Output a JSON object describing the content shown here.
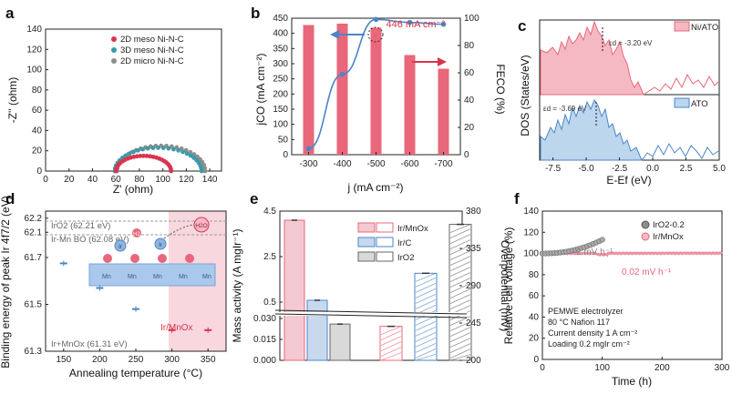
{
  "colors": {
    "red": "#d9344e",
    "teal": "#3d9aa8",
    "gray": "#8d8d8d",
    "bar_red": "#e9677a",
    "line_blue": "#4a86c8",
    "pink_light": "#f5c9d1",
    "blue_light": "#c8d9ee",
    "gray_light": "#d9d9d9",
    "pink_shade": "#f9d7de"
  },
  "panels": {
    "a": {
      "letter": "a",
      "chart_data": {
        "type": "scatter",
        "xlabel": "Z' (ohm)",
        "ylabel": "-Z'' (ohm)",
        "xlim": [
          0,
          150
        ],
        "ylim": [
          0,
          140
        ],
        "xticks": [
          "0",
          "20",
          "40",
          "60",
          "80",
          "100",
          "120",
          "140"
        ],
        "yticks": [
          "0",
          "20",
          "40",
          "60",
          "80",
          "100",
          "120",
          "140"
        ],
        "series": [
          {
            "name": "2D meso Ni-N-C",
            "color": "#d9344e",
            "x_start": 60,
            "x_end": 107,
            "peak": 15
          },
          {
            "name": "3D meso Ni-N-C",
            "color": "#3d9aa8",
            "x_start": 59,
            "x_end": 133,
            "peak": 23
          },
          {
            "name": "2D micro Ni-N-C",
            "color": "#8d8d8d",
            "x_start": 61,
            "x_end": 136,
            "peak": 25
          }
        ]
      }
    },
    "b": {
      "letter": "b",
      "annotation": "446 mA cm⁻²",
      "chart_data": {
        "type": "bar",
        "categories": [
          "-300",
          "-400",
          "-500",
          "-600",
          "-700"
        ],
        "xlabel": "j (mA cm⁻²)",
        "ylabel_left": "jCO (mA cm⁻²)",
        "ylabel_right": "FECO (%)",
        "ylim_left": [
          0,
          450
        ],
        "ylim_right": [
          0,
          100
        ],
        "yticks_left": [
          "0",
          "50",
          "100",
          "150",
          "200",
          "250",
          "300",
          "350",
          "400",
          "450"
        ],
        "yticks_right": [
          "0",
          "20",
          "40",
          "60",
          "80",
          "100"
        ],
        "bar_series": {
          "name": "FE CO (%)",
          "values": [
            95,
            96,
            93,
            73,
            63
          ]
        },
        "line_series": {
          "name": "jCO",
          "values": [
            20,
            265,
            446,
            436,
            430
          ]
        }
      }
    },
    "c": {
      "letter": "c",
      "xlabel": "E-Ef (eV)",
      "ylabel": "DOS (States/eV)",
      "xticks": [
        "-7.5",
        "-5.0",
        "-2.5",
        "0.0",
        "2.5",
        "5.0"
      ],
      "top": {
        "legend": "Ni/ATO",
        "annotation": "εd = -3.20 eV"
      },
      "bottom": {
        "legend": "ATO",
        "annotation": "εd = -3.69 eV"
      }
    },
    "d": {
      "letter": "d",
      "chart_data": {
        "type": "scatter",
        "xlabel": "Annealing temperature (°C)",
        "ylabel": "Binding energy of peak Ir 4f7/2 (eV)",
        "xlim": [
          125,
          375
        ],
        "ylim": [
          61.3,
          62.25
        ],
        "xticks": [
          "150",
          "200",
          "250",
          "300",
          "350"
        ],
        "yticks": [
          "61.3",
          "61.5",
          "61.7",
          "62.1",
          "62.2"
        ],
        "points": [
          {
            "x": 150,
            "y": 61.675,
            "color": "#4a86c8"
          },
          {
            "x": 200,
            "y": 61.57,
            "color": "#4a86c8"
          },
          {
            "x": 250,
            "y": 61.48,
            "color": "#4a86c8"
          },
          {
            "x": 300,
            "y": 61.39,
            "color": "#d9344e"
          },
          {
            "x": 350,
            "y": 61.39,
            "color": "#d9344e"
          }
        ],
        "reference_lines": [
          {
            "label": "IrO2 (62.21 eV)",
            "y": 62.21
          },
          {
            "label": "Ir-Mn BO (62.08 eV)",
            "y": 62.08
          }
        ],
        "annotations": {
          "irmnox": "Ir/MnOx",
          "ref_bottom": "Ir+MnOx (61.31 eV)"
        },
        "molecule_labels": {
          "water": "H2O",
          "hydrogen": "H2",
          "iridium": "Ir",
          "oxygen": "O",
          "manganese": "Mn"
        }
      }
    },
    "e": {
      "letter": "e",
      "chart_data": {
        "type": "bar",
        "ylabel_left": "Mass activity (A mgIr⁻¹)",
        "ylabel_right": "Overpotential (mV)",
        "yticks_left": [
          "0.000",
          "0.015",
          "0.030",
          "0.5",
          "2.5",
          "4.5"
        ],
        "yticks_right": [
          "200",
          "245",
          "290",
          "335",
          "380"
        ],
        "legend": [
          "Ir/MnOx",
          "Ir/C",
          "IrO2"
        ],
        "mass_activity": [
          {
            "name": "Ir/MnOx",
            "value": 4.1
          },
          {
            "name": "Ir/C",
            "value": 0.58
          },
          {
            "name": "IrO2",
            "value": 0.026
          }
        ],
        "overpotential": [
          {
            "name": "Ir/MnOx",
            "value": 241
          },
          {
            "name": "Ir/C",
            "value": 305
          },
          {
            "name": "IrO2",
            "value": 364
          }
        ]
      }
    },
    "f": {
      "letter": "f",
      "chart_data": {
        "type": "line",
        "xlabel": "Time (h)",
        "ylabel": "Relative cell voltage (%)",
        "xlim": [
          0,
          300
        ],
        "ylim": [
          0,
          140
        ],
        "xticks": [
          "0",
          "100",
          "200",
          "300"
        ],
        "yticks": [
          "0",
          "20",
          "40",
          "60",
          "80",
          "100",
          "120",
          "140"
        ],
        "series": [
          {
            "name": "IrO2-0.2",
            "color": "#8d8d8d",
            "rate": "2 mV h⁻¹",
            "t_end": 100,
            "v_start": 100,
            "v_end": 113
          },
          {
            "name": "Ir/MnOx",
            "color": "#ef8fa0",
            "rate": "0.02 mV h⁻¹",
            "t_end": 300,
            "v_start": 100,
            "v_end": 100.2
          }
        ],
        "conditions": [
          "PEMWE electrolyzer",
          "80 °C Nafion 117",
          "Current density 1 A cm⁻²",
          "Loading 0.2 mgIr cm⁻²"
        ]
      }
    }
  }
}
